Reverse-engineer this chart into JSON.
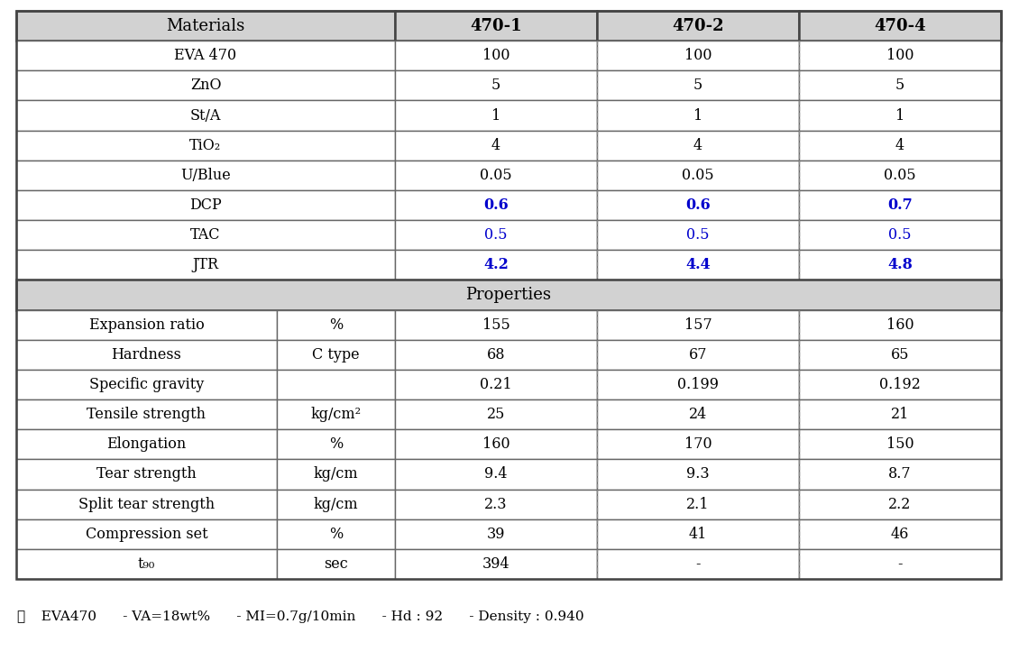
{
  "col_headers": [
    "Materials",
    "",
    "470-1",
    "470-2",
    "470-4"
  ],
  "formulation_rows": [
    {
      "label": "EVA 470",
      "vals": [
        "100",
        "100",
        "100"
      ],
      "color": "black",
      "bold": false
    },
    {
      "label": "ZnO",
      "vals": [
        "5",
        "5",
        "5"
      ],
      "color": "black",
      "bold": false
    },
    {
      "label": "St/A",
      "vals": [
        "1",
        "1",
        "1"
      ],
      "color": "black",
      "bold": false
    },
    {
      "label": "TiO₂",
      "vals": [
        "4",
        "4",
        "4"
      ],
      "color": "black",
      "bold": false
    },
    {
      "label": "U/Blue",
      "vals": [
        "0.05",
        "0.05",
        "0.05"
      ],
      "color": "black",
      "bold": false
    },
    {
      "label": "DCP",
      "vals": [
        "0.6",
        "0.6",
        "0.7"
      ],
      "color": "blue",
      "bold": true
    },
    {
      "label": "TAC",
      "vals": [
        "0.5",
        "0.5",
        "0.5"
      ],
      "color": "blue",
      "bold": false
    },
    {
      "label": "JTR",
      "vals": [
        "4.2",
        "4.4",
        "4.8"
      ],
      "color": "blue",
      "bold": true
    }
  ],
  "properties_header": "Properties",
  "properties_rows": [
    {
      "label": "Expansion ratio",
      "unit": "%",
      "vals": [
        "155",
        "157",
        "160"
      ],
      "color": "black"
    },
    {
      "label": "Hardness",
      "unit": "C type",
      "vals": [
        "68",
        "67",
        "65"
      ],
      "color": "black"
    },
    {
      "label": "Specific gravity",
      "unit": "",
      "vals": [
        "0.21",
        "0.199",
        "0.192"
      ],
      "color": "black"
    },
    {
      "label": "Tensile strength",
      "unit": "kg/cm²",
      "vals": [
        "25",
        "24",
        "21"
      ],
      "color": "black"
    },
    {
      "label": "Elongation",
      "unit": "%",
      "vals": [
        "160",
        "170",
        "150"
      ],
      "color": "black"
    },
    {
      "label": "Tear strength",
      "unit": "kg/cm",
      "vals": [
        "9.4",
        "9.3",
        "8.7"
      ],
      "color": "black"
    },
    {
      "label": "Split tear strength",
      "unit": "kg/cm",
      "vals": [
        "2.3",
        "2.1",
        "2.2"
      ],
      "color": "black"
    },
    {
      "label": "Compression set",
      "unit": "%",
      "vals": [
        "39",
        "41",
        "46"
      ],
      "color": "black"
    },
    {
      "label": "t₉₀",
      "unit": "sec",
      "vals": [
        "394",
        "-",
        "-"
      ],
      "color": "black"
    }
  ],
  "footer_star": "☆",
  "footer_text": "  EVA470      - VA=18wt%      - MI=0.7g/10min      - Hd : 92      - Density : 0.940",
  "bg_color": "#ffffff",
  "header_gray": "#d2d2d2",
  "blue_color": "#0000cc",
  "line_color_outer": "#444444",
  "line_color_inner": "#666666",
  "line_color_dashed": "#888888",
  "fs_header": 13,
  "fs_body": 11.5,
  "fs_footer": 11
}
